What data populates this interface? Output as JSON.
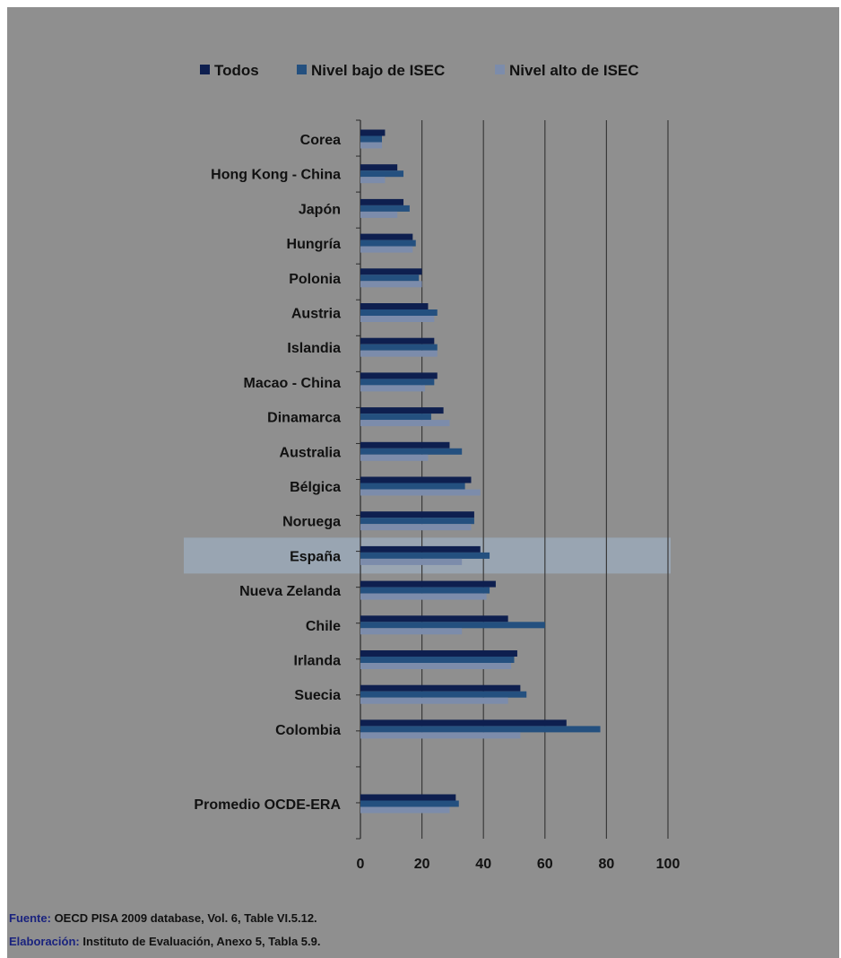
{
  "chart_data": {
    "type": "bar",
    "orientation": "horizontal",
    "categories": [
      "Corea",
      "Hong Kong - China",
      "Japón",
      "Hungría",
      "Polonia",
      "Austria",
      "Islandia",
      "Macao - China",
      "Dinamarca",
      "Australia",
      "Bélgica",
      "Noruega",
      "España",
      "Nueva Zelanda",
      "Chile",
      "Irlanda",
      "Suecia",
      "Colombia",
      "Promedio OCDE-ERA"
    ],
    "highlight_category": "España",
    "series": [
      {
        "name": "Todos",
        "color": "#0e1f4f",
        "values": [
          8,
          12,
          14,
          17,
          20,
          22,
          24,
          25,
          27,
          29,
          36,
          37,
          39,
          44,
          48,
          51,
          52,
          67,
          31
        ]
      },
      {
        "name": "Nivel bajo de ISEC",
        "color": "#24507f",
        "values": [
          7,
          14,
          16,
          18,
          19,
          25,
          25,
          24,
          23,
          33,
          34,
          37,
          42,
          42,
          60,
          50,
          54,
          78,
          32
        ]
      },
      {
        "name": "Nivel alto de ISEC",
        "color": "#7c8cab",
        "values": [
          7,
          8,
          12,
          17,
          20,
          24,
          25,
          21,
          29,
          22,
          39,
          36,
          33,
          41,
          33,
          49,
          48,
          52,
          29
        ]
      }
    ],
    "xlim": [
      0,
      100
    ],
    "xticks": [
      0,
      20,
      40,
      60,
      80,
      100
    ],
    "grid": "vertical",
    "legend_position": "top"
  },
  "footer": {
    "source_lead": "Fuente:",
    "source_text": " OECD PISA 2009 database, Vol. 6, Table VI.5.12.",
    "credit_lead": "Elaboración:",
    "credit_text": " Instituto de Evaluación, Anexo 5, Tabla 5.9."
  }
}
